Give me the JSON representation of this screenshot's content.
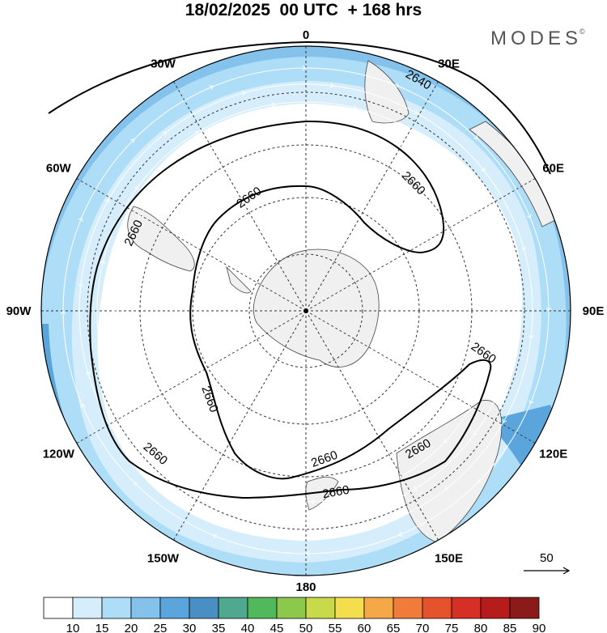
{
  "header": {
    "title": "18/02/2025  00 UTC  + 168 hrs",
    "logo": "MODES",
    "logo_mark": "©"
  },
  "map": {
    "projection": "south-polar-stereographic",
    "longitude_labels": [
      {
        "text": "0",
        "lon": 0
      },
      {
        "text": "30E",
        "lon": 30
      },
      {
        "text": "60E",
        "lon": 60
      },
      {
        "text": "90E",
        "lon": 90
      },
      {
        "text": "120E",
        "lon": 120
      },
      {
        "text": "150E",
        "lon": 150
      },
      {
        "text": "180",
        "lon": 180
      },
      {
        "text": "150W",
        "lon": -150
      },
      {
        "text": "120W",
        "lon": -120
      },
      {
        "text": "90W",
        "lon": -90
      },
      {
        "text": "60W",
        "lon": -60
      },
      {
        "text": "30W",
        "lon": -30
      }
    ],
    "contour_labels": [
      "2640",
      "2660",
      "2660",
      "2660",
      "2660",
      "2660",
      "2660",
      "2660",
      "2660",
      "2660"
    ],
    "reference_vector": "50",
    "colors": {
      "land": "#f0f0f0",
      "shade_10_15": "#d6eefc",
      "shade_15_20": "#aeddf7",
      "shade_20_25": "#84c2ec",
      "shade_25_30": "#5aa5dc"
    }
  },
  "colorbar": {
    "labels": [
      "10",
      "15",
      "20",
      "25",
      "30",
      "35",
      "40",
      "45",
      "50",
      "55",
      "60",
      "65",
      "70",
      "75",
      "80",
      "85",
      "90"
    ],
    "colors": [
      "#ffffff",
      "#d6eefc",
      "#aeddf7",
      "#84c2ec",
      "#5aa5dc",
      "#4a8fc4",
      "#4fa88f",
      "#52b85c",
      "#8cc84c",
      "#c8d94a",
      "#f5de4e",
      "#f5a847",
      "#f07b3a",
      "#e4532c",
      "#d63026",
      "#b71c1c",
      "#8b1a1a"
    ]
  }
}
